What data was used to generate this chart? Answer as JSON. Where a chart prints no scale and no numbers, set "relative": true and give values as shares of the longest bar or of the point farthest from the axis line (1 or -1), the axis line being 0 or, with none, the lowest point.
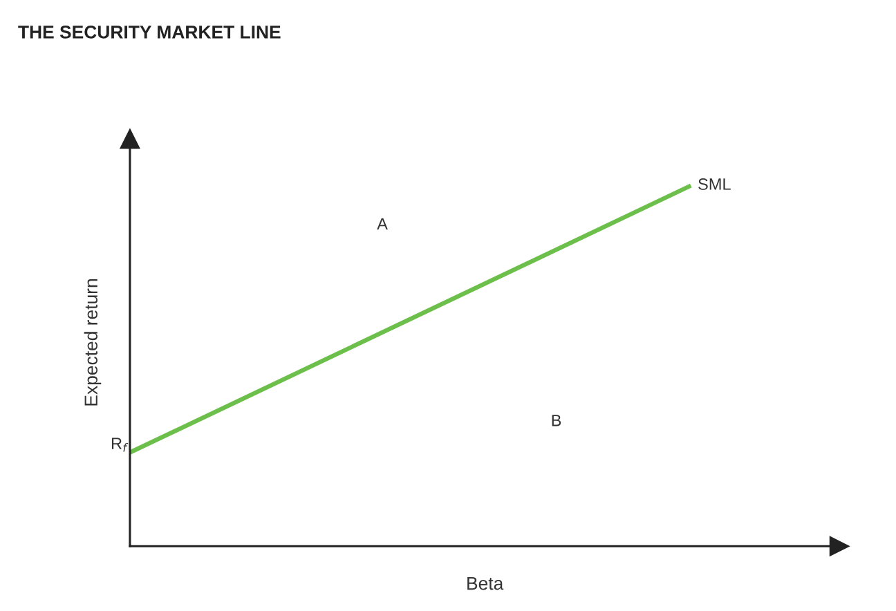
{
  "chart_data": {
    "type": "line",
    "title": "THE SECURITY MARKET LINE",
    "xlabel": "Beta",
    "ylabel": "Expected return",
    "relative": true,
    "categories": [
      null,
      null
    ],
    "series": [
      {
        "name": "SML",
        "color": "#6cbf4a",
        "values": [
          0.26,
          1
        ]
      }
    ],
    "annotations": [
      "R$_{f}$",
      "A",
      "B"
    ],
    "grid": false,
    "legend": false,
    "marker": "none",
    "line_style": "solid"
  }
}
